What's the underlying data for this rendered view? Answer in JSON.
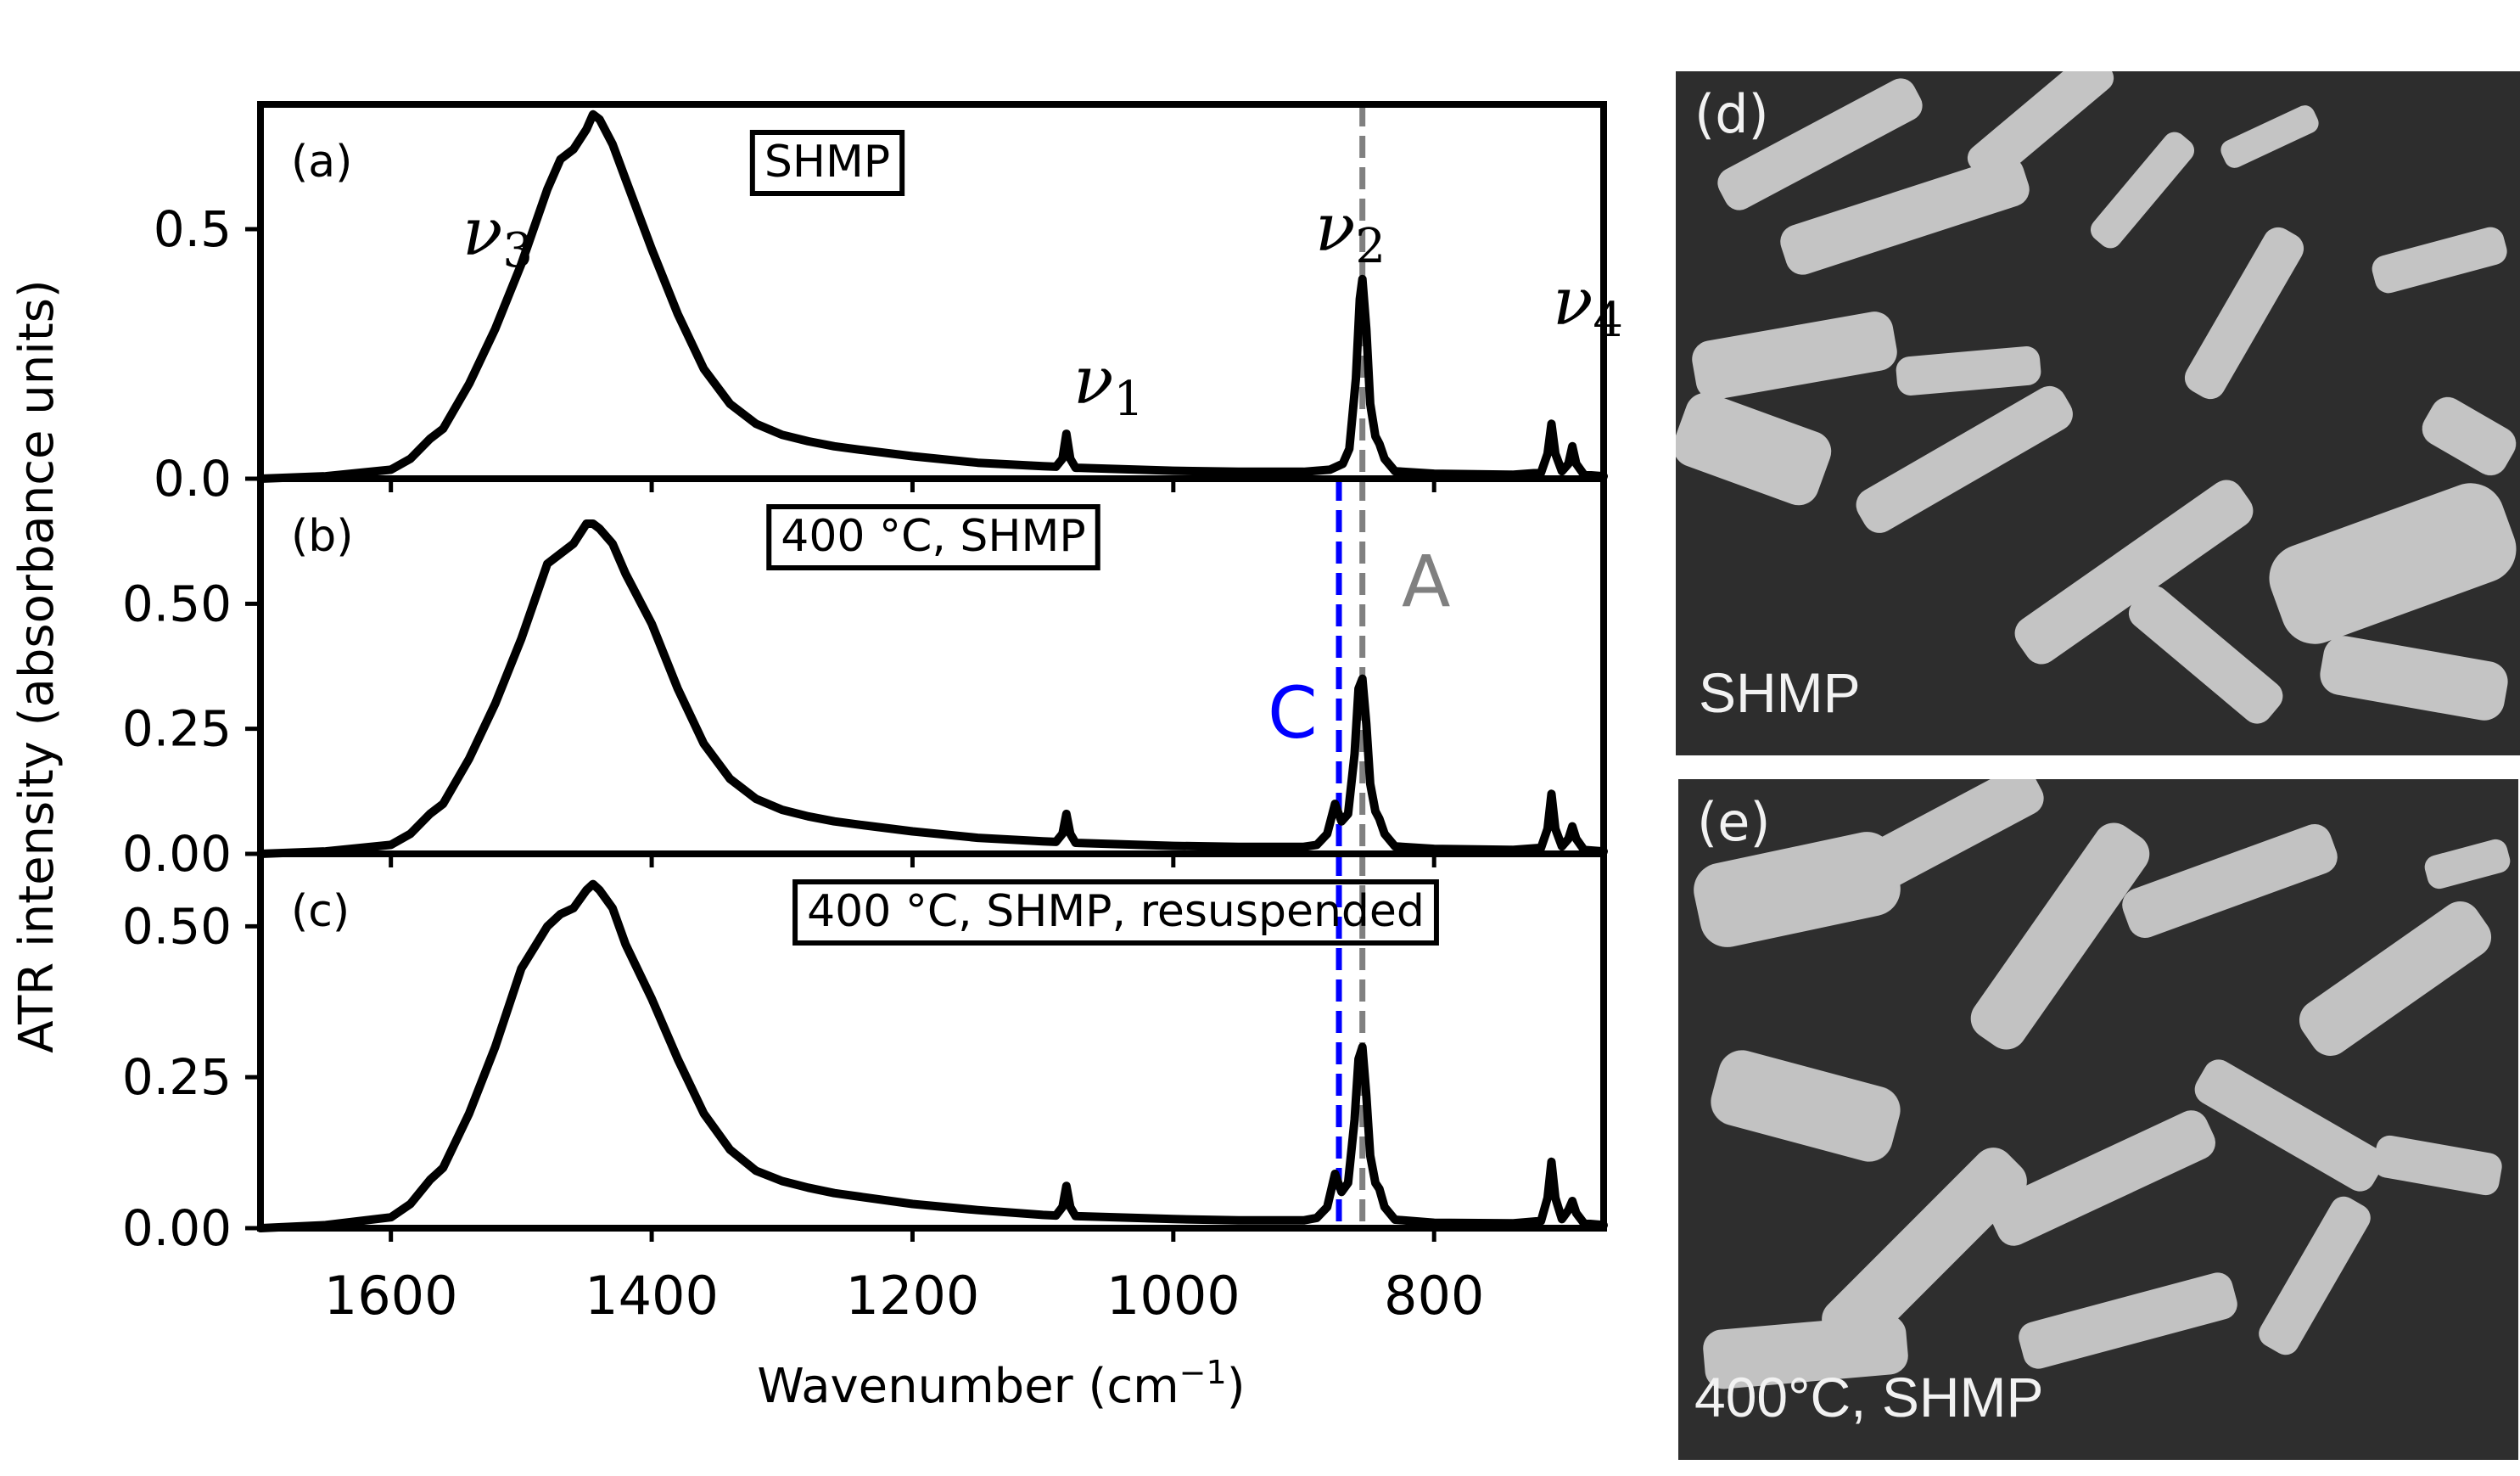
{
  "chart_data": {
    "type": "line",
    "xlabel_base": "Wavenumber (cm",
    "xlabel_sup": "−1",
    "xlabel_end": ")",
    "ylabel": "ATR intensity (absorbance units)",
    "xlim": [
      1700,
      670
    ],
    "x_ticks": [
      1600,
      1400,
      1200,
      1000,
      800
    ],
    "grid": false,
    "colors": {
      "spectrum": "#000000",
      "line_A": "#808080",
      "line_C": "#0000ff"
    },
    "reference_lines": {
      "A": 855,
      "C": 873
    },
    "peak_labels": [
      {
        "text": "ν",
        "sub": "3"
      },
      {
        "text": "ν",
        "sub": "1"
      },
      {
        "text": "ν",
        "sub": "2"
      },
      {
        "text": "ν",
        "sub": "4"
      }
    ],
    "marker_labels": {
      "A": "A",
      "C": "C"
    },
    "panels": [
      {
        "id": "a",
        "panel_label": "(a)",
        "box_label": "SHMP",
        "ylim": [
          0,
          0.75
        ],
        "y_ticks": [
          "0.0",
          "0.5"
        ],
        "y_tick_values": [
          0.0,
          0.5
        ],
        "show_C": false,
        "shoulder": 0.0,
        "spectrum": [
          [
            1700,
            0.0
          ],
          [
            1650,
            0.005
          ],
          [
            1600,
            0.018
          ],
          [
            1585,
            0.04
          ],
          [
            1570,
            0.08
          ],
          [
            1560,
            0.1
          ],
          [
            1540,
            0.19
          ],
          [
            1520,
            0.3
          ],
          [
            1500,
            0.43
          ],
          [
            1480,
            0.58
          ],
          [
            1470,
            0.64
          ],
          [
            1460,
            0.66
          ],
          [
            1450,
            0.7
          ],
          [
            1445,
            0.73
          ],
          [
            1440,
            0.72
          ],
          [
            1430,
            0.67
          ],
          [
            1420,
            0.6
          ],
          [
            1400,
            0.46
          ],
          [
            1380,
            0.33
          ],
          [
            1360,
            0.22
          ],
          [
            1340,
            0.15
          ],
          [
            1320,
            0.11
          ],
          [
            1300,
            0.088
          ],
          [
            1280,
            0.075
          ],
          [
            1260,
            0.065
          ],
          [
            1240,
            0.058
          ],
          [
            1200,
            0.045
          ],
          [
            1150,
            0.032
          ],
          [
            1100,
            0.025
          ],
          [
            1090,
            0.024
          ],
          [
            1085,
            0.04
          ],
          [
            1082,
            0.09
          ],
          [
            1079,
            0.04
          ],
          [
            1075,
            0.022
          ],
          [
            1000,
            0.016
          ],
          [
            950,
            0.014
          ],
          [
            900,
            0.014
          ],
          [
            880,
            0.018
          ],
          [
            870,
            0.03
          ],
          [
            865,
            0.06
          ],
          [
            860,
            0.2
          ],
          [
            857,
            0.36
          ],
          [
            855,
            0.4
          ],
          [
            852,
            0.3
          ],
          [
            849,
            0.15
          ],
          [
            845,
            0.085
          ],
          [
            842,
            0.07
          ],
          [
            838,
            0.04
          ],
          [
            830,
            0.015
          ],
          [
            800,
            0.01
          ],
          [
            740,
            0.008
          ],
          [
            718,
            0.012
          ],
          [
            713,
            0.05
          ],
          [
            710,
            0.11
          ],
          [
            707,
            0.05
          ],
          [
            702,
            0.015
          ],
          [
            697,
            0.03
          ],
          [
            694,
            0.065
          ],
          [
            691,
            0.03
          ],
          [
            685,
            0.008
          ],
          [
            670,
            0.005
          ]
        ]
      },
      {
        "id": "b",
        "panel_label": "(b)",
        "box_label": "400 °C, SHMP",
        "ylim": [
          0,
          0.75
        ],
        "y_ticks": [
          "0.00",
          "0.25",
          "0.50"
        ],
        "y_tick_values": [
          0.0,
          0.25,
          0.5
        ],
        "show_C": true,
        "shoulder": 0.1,
        "spectrum": [
          [
            1700,
            0.0
          ],
          [
            1650,
            0.005
          ],
          [
            1600,
            0.018
          ],
          [
            1585,
            0.04
          ],
          [
            1570,
            0.08
          ],
          [
            1560,
            0.1
          ],
          [
            1540,
            0.19
          ],
          [
            1520,
            0.3
          ],
          [
            1500,
            0.43
          ],
          [
            1480,
            0.58
          ],
          [
            1470,
            0.6
          ],
          [
            1460,
            0.62
          ],
          [
            1450,
            0.66
          ],
          [
            1445,
            0.66
          ],
          [
            1440,
            0.65
          ],
          [
            1430,
            0.62
          ],
          [
            1420,
            0.56
          ],
          [
            1400,
            0.46
          ],
          [
            1380,
            0.33
          ],
          [
            1360,
            0.22
          ],
          [
            1340,
            0.15
          ],
          [
            1320,
            0.11
          ],
          [
            1300,
            0.088
          ],
          [
            1280,
            0.075
          ],
          [
            1260,
            0.065
          ],
          [
            1240,
            0.058
          ],
          [
            1200,
            0.045
          ],
          [
            1150,
            0.032
          ],
          [
            1100,
            0.025
          ],
          [
            1090,
            0.024
          ],
          [
            1085,
            0.04
          ],
          [
            1082,
            0.08
          ],
          [
            1079,
            0.04
          ],
          [
            1075,
            0.022
          ],
          [
            1000,
            0.016
          ],
          [
            950,
            0.014
          ],
          [
            900,
            0.014
          ],
          [
            890,
            0.018
          ],
          [
            882,
            0.04
          ],
          [
            876,
            0.1
          ],
          [
            871,
            0.065
          ],
          [
            866,
            0.08
          ],
          [
            861,
            0.2
          ],
          [
            858,
            0.33
          ],
          [
            855,
            0.35
          ],
          [
            852,
            0.26
          ],
          [
            849,
            0.14
          ],
          [
            845,
            0.085
          ],
          [
            842,
            0.07
          ],
          [
            838,
            0.04
          ],
          [
            830,
            0.015
          ],
          [
            800,
            0.01
          ],
          [
            740,
            0.008
          ],
          [
            718,
            0.012
          ],
          [
            713,
            0.05
          ],
          [
            710,
            0.12
          ],
          [
            707,
            0.05
          ],
          [
            702,
            0.015
          ],
          [
            697,
            0.03
          ],
          [
            694,
            0.055
          ],
          [
            691,
            0.03
          ],
          [
            685,
            0.008
          ],
          [
            670,
            0.005
          ]
        ]
      },
      {
        "id": "c",
        "panel_label": "(c)",
        "box_label": "400 °C, SHMP, resuspended",
        "ylim": [
          0,
          0.62
        ],
        "y_ticks": [
          "0.00",
          "0.25",
          "0.50"
        ],
        "y_tick_values": [
          0.0,
          0.25,
          0.5
        ],
        "show_C": true,
        "shoulder": 0.1,
        "spectrum": [
          [
            1700,
            0.0
          ],
          [
            1650,
            0.005
          ],
          [
            1600,
            0.018
          ],
          [
            1585,
            0.04
          ],
          [
            1570,
            0.08
          ],
          [
            1560,
            0.1
          ],
          [
            1540,
            0.19
          ],
          [
            1520,
            0.3
          ],
          [
            1500,
            0.43
          ],
          [
            1480,
            0.5
          ],
          [
            1470,
            0.52
          ],
          [
            1460,
            0.53
          ],
          [
            1450,
            0.56
          ],
          [
            1445,
            0.57
          ],
          [
            1440,
            0.56
          ],
          [
            1430,
            0.53
          ],
          [
            1420,
            0.47
          ],
          [
            1400,
            0.38
          ],
          [
            1380,
            0.28
          ],
          [
            1360,
            0.19
          ],
          [
            1340,
            0.13
          ],
          [
            1320,
            0.095
          ],
          [
            1300,
            0.078
          ],
          [
            1280,
            0.067
          ],
          [
            1260,
            0.058
          ],
          [
            1240,
            0.052
          ],
          [
            1200,
            0.04
          ],
          [
            1150,
            0.03
          ],
          [
            1100,
            0.022
          ],
          [
            1090,
            0.021
          ],
          [
            1085,
            0.035
          ],
          [
            1082,
            0.07
          ],
          [
            1079,
            0.035
          ],
          [
            1075,
            0.02
          ],
          [
            1000,
            0.015
          ],
          [
            950,
            0.013
          ],
          [
            900,
            0.013
          ],
          [
            890,
            0.017
          ],
          [
            882,
            0.035
          ],
          [
            876,
            0.09
          ],
          [
            871,
            0.06
          ],
          [
            866,
            0.075
          ],
          [
            861,
            0.18
          ],
          [
            858,
            0.28
          ],
          [
            855,
            0.3
          ],
          [
            852,
            0.22
          ],
          [
            849,
            0.12
          ],
          [
            845,
            0.075
          ],
          [
            842,
            0.065
          ],
          [
            838,
            0.035
          ],
          [
            830,
            0.014
          ],
          [
            800,
            0.009
          ],
          [
            740,
            0.008
          ],
          [
            718,
            0.012
          ],
          [
            713,
            0.05
          ],
          [
            710,
            0.11
          ],
          [
            707,
            0.05
          ],
          [
            702,
            0.015
          ],
          [
            697,
            0.03
          ],
          [
            694,
            0.045
          ],
          [
            691,
            0.025
          ],
          [
            685,
            0.008
          ],
          [
            670,
            0.005
          ]
        ]
      }
    ]
  },
  "sem_images": [
    {
      "id": "d",
      "panel_label": "(d)",
      "caption": "SHMP"
    },
    {
      "id": "e",
      "panel_label": "(e)",
      "caption": "400°C, SHMP"
    }
  ]
}
